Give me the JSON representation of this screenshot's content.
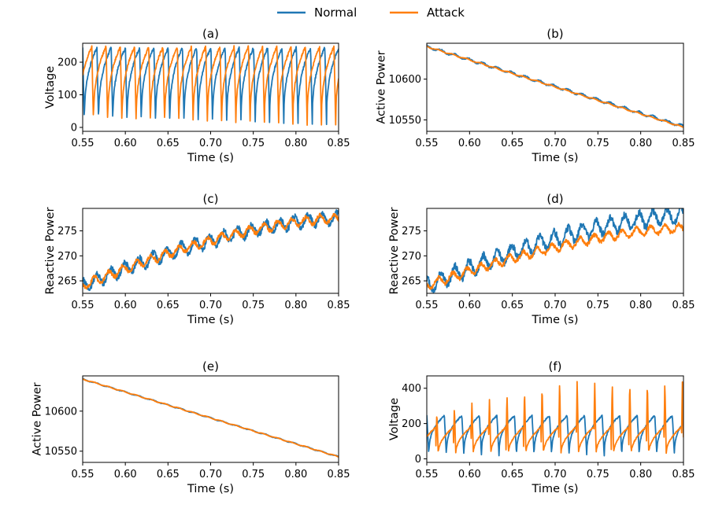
{
  "legend": {
    "entries": [
      {
        "name": "Normal",
        "color": "#1f77b4"
      },
      {
        "name": "Attack",
        "color": "#ff7f0e"
      }
    ],
    "placement": "top-center"
  },
  "chart_data": [
    {
      "type": "line",
      "panel": "a",
      "title": "(a)",
      "xlabel": "Time (s)",
      "ylabel": "Voltage",
      "xlim": [
        0.55,
        0.85
      ],
      "ylim": [
        -12,
        258
      ],
      "xticks": [
        0.55,
        0.6,
        0.65,
        0.7,
        0.75,
        0.8,
        0.85
      ],
      "yticks": [
        0,
        100,
        200
      ],
      "series": [
        {
          "name": "Normal",
          "pattern": "sawtooth",
          "period": 0.0167,
          "phase": 0.0,
          "min": 5,
          "max": 245
        },
        {
          "name": "Attack",
          "pattern": "sawtooth",
          "period": 0.0167,
          "phase": 0.006,
          "min": 2,
          "max": 248
        }
      ]
    },
    {
      "type": "line",
      "panel": "b",
      "title": "(b)",
      "xlabel": "Time (s)",
      "ylabel": "Active Power",
      "xlim": [
        0.55,
        0.85
      ],
      "ylim": [
        10536,
        10644
      ],
      "xticks": [
        0.55,
        0.6,
        0.65,
        0.7,
        0.75,
        0.8,
        0.85
      ],
      "yticks": [
        10550,
        10600
      ],
      "series": [
        {
          "name": "Normal",
          "start": 10640,
          "end": 10542,
          "ripple": 1.5
        },
        {
          "name": "Attack",
          "start": 10640,
          "end": 10541,
          "ripple": 0.7
        }
      ]
    },
    {
      "type": "line",
      "panel": "c",
      "title": "(c)",
      "xlabel": "Time (s)",
      "ylabel": "Reactive Power",
      "xlim": [
        0.55,
        0.85
      ],
      "ylim": [
        262.5,
        279.5
      ],
      "xticks": [
        0.55,
        0.6,
        0.65,
        0.7,
        0.75,
        0.8,
        0.85
      ],
      "yticks": [
        265,
        270,
        275
      ],
      "series": [
        {
          "name": "Normal",
          "start": 264,
          "end": 277.5,
          "ripple": 1.2
        },
        {
          "name": "Attack",
          "start": 264,
          "end": 277.5,
          "ripple": 0.8
        }
      ]
    },
    {
      "type": "line",
      "panel": "d",
      "title": "(d)",
      "xlabel": "Time (s)",
      "ylabel": "Reactive Power",
      "xlim": [
        0.55,
        0.85
      ],
      "ylim": [
        262.5,
        279.5
      ],
      "xticks": [
        0.55,
        0.6,
        0.65,
        0.7,
        0.75,
        0.8,
        0.85
      ],
      "yticks": [
        265,
        270,
        275
      ],
      "series": [
        {
          "name": "Normal",
          "start": 264,
          "end": 278,
          "ripple": 1.5
        },
        {
          "name": "Attack",
          "start": 264,
          "end": 275.5,
          "ripple": 0.8
        }
      ]
    },
    {
      "type": "line",
      "panel": "e",
      "title": "(e)",
      "xlabel": "Time (s)",
      "ylabel": "Active Power",
      "xlim": [
        0.55,
        0.85
      ],
      "ylim": [
        10536,
        10644
      ],
      "xticks": [
        0.55,
        0.6,
        0.65,
        0.7,
        0.75,
        0.8,
        0.85
      ],
      "yticks": [
        10550,
        10600
      ],
      "series": [
        {
          "name": "Normal",
          "start": 10640,
          "end": 10543,
          "ripple": 0.6
        },
        {
          "name": "Attack",
          "start": 10640,
          "end": 10543,
          "ripple": 0.5
        }
      ]
    },
    {
      "type": "line",
      "panel": "f",
      "title": "(f)",
      "xlabel": "Time (s)",
      "ylabel": "Voltage",
      "xlim": [
        0.55,
        0.85
      ],
      "ylim": [
        -20,
        470
      ],
      "xticks": [
        0.55,
        0.6,
        0.65,
        0.7,
        0.75,
        0.8,
        0.85
      ],
      "yticks": [
        0,
        200,
        400
      ],
      "series": [
        {
          "name": "Normal",
          "pattern": "sawtooth",
          "period": 0.0205,
          "phase": 0.0,
          "min": 15,
          "max": 245
        },
        {
          "name": "Attack",
          "pattern": "spike",
          "period": 0.0205,
          "phase": 0.01,
          "min": 30,
          "max": 440
        }
      ]
    }
  ]
}
